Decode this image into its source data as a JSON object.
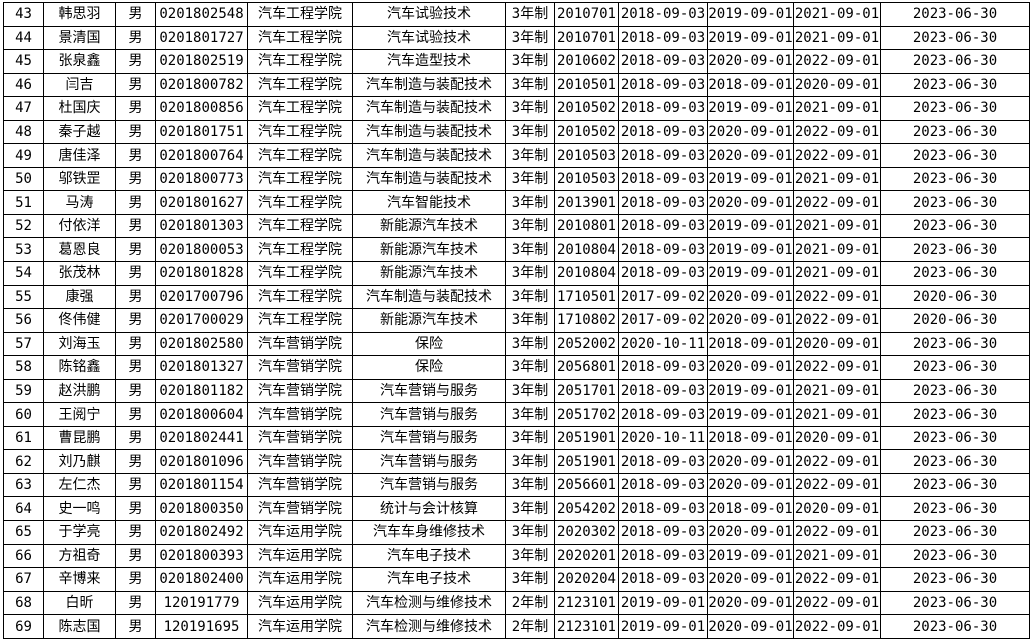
{
  "page": {
    "background_color": "#ffffff",
    "border_color": "#000000",
    "text_color": "#000000"
  },
  "table": {
    "columns": [
      {
        "id": "row-number"
      },
      {
        "id": "student-name"
      },
      {
        "id": "gender"
      },
      {
        "id": "student-id"
      },
      {
        "id": "college"
      },
      {
        "id": "major"
      },
      {
        "id": "program-duration"
      },
      {
        "id": "class-code"
      },
      {
        "id": "date-1"
      },
      {
        "id": "date-2"
      },
      {
        "id": "date-3"
      },
      {
        "id": "date-4"
      }
    ],
    "rows": [
      [
        "43",
        "韩思羽",
        "男",
        "0201802548",
        "汽车工程学院",
        "汽车试验技术",
        "3年制",
        "2010701",
        "2018-09-03",
        "2019-09-01",
        "2021-09-01",
        "2023-06-30"
      ],
      [
        "44",
        "景清国",
        "男",
        "0201801727",
        "汽车工程学院",
        "汽车试验技术",
        "3年制",
        "2010701",
        "2018-09-03",
        "2019-09-01",
        "2021-09-01",
        "2023-06-30"
      ],
      [
        "45",
        "张泉鑫",
        "男",
        "0201802519",
        "汽车工程学院",
        "汽车造型技术",
        "3年制",
        "2010602",
        "2018-09-03",
        "2020-09-01",
        "2022-09-01",
        "2023-06-30"
      ],
      [
        "46",
        "闫吉",
        "男",
        "0201800782",
        "汽车工程学院",
        "汽车制造与装配技术",
        "3年制",
        "2010501",
        "2018-09-03",
        "2018-09-01",
        "2020-09-01",
        "2023-06-30"
      ],
      [
        "47",
        "杜国庆",
        "男",
        "0201800856",
        "汽车工程学院",
        "汽车制造与装配技术",
        "3年制",
        "2010502",
        "2018-09-03",
        "2019-09-01",
        "2021-09-01",
        "2023-06-30"
      ],
      [
        "48",
        "秦子越",
        "男",
        "0201801751",
        "汽车工程学院",
        "汽车制造与装配技术",
        "3年制",
        "2010502",
        "2018-09-03",
        "2020-09-01",
        "2022-09-01",
        "2023-06-30"
      ],
      [
        "49",
        "唐佳泽",
        "男",
        "0201800764",
        "汽车工程学院",
        "汽车制造与装配技术",
        "3年制",
        "2010503",
        "2018-09-03",
        "2020-09-01",
        "2022-09-01",
        "2023-06-30"
      ],
      [
        "50",
        "邬铁罡",
        "男",
        "0201800773",
        "汽车工程学院",
        "汽车制造与装配技术",
        "3年制",
        "2010503",
        "2018-09-03",
        "2019-09-01",
        "2021-09-01",
        "2023-06-30"
      ],
      [
        "51",
        "马涛",
        "男",
        "0201801627",
        "汽车工程学院",
        "汽车智能技术",
        "3年制",
        "2013901",
        "2018-09-03",
        "2020-09-01",
        "2022-09-01",
        "2023-06-30"
      ],
      [
        "52",
        "付依洋",
        "男",
        "0201801303",
        "汽车工程学院",
        "新能源汽车技术",
        "3年制",
        "2010801",
        "2018-09-03",
        "2019-09-01",
        "2021-09-01",
        "2023-06-30"
      ],
      [
        "53",
        "葛恩良",
        "男",
        "0201800053",
        "汽车工程学院",
        "新能源汽车技术",
        "3年制",
        "2010804",
        "2018-09-03",
        "2019-09-01",
        "2021-09-01",
        "2023-06-30"
      ],
      [
        "54",
        "张茂林",
        "男",
        "0201801828",
        "汽车工程学院",
        "新能源汽车技术",
        "3年制",
        "2010804",
        "2018-09-03",
        "2019-09-01",
        "2021-09-01",
        "2023-06-30"
      ],
      [
        "55",
        "康强",
        "男",
        "0201700796",
        "汽车工程学院",
        "汽车制造与装配技术",
        "3年制",
        "1710501",
        "2017-09-02",
        "2020-09-01",
        "2022-09-01",
        "2020-06-30"
      ],
      [
        "56",
        "佟伟健",
        "男",
        "0201700029",
        "汽车工程学院",
        "新能源汽车技术",
        "3年制",
        "1710802",
        "2017-09-02",
        "2020-09-01",
        "2022-09-01",
        "2020-06-30"
      ],
      [
        "57",
        "刘海玉",
        "男",
        "0201802580",
        "汽车营销学院",
        "保险",
        "3年制",
        "2052002",
        "2020-10-11",
        "2018-09-01",
        "2020-09-01",
        "2023-06-30"
      ],
      [
        "58",
        "陈铭鑫",
        "男",
        "0201801327",
        "汽车营销学院",
        "保险",
        "3年制",
        "2056801",
        "2018-09-03",
        "2020-09-01",
        "2022-09-01",
        "2023-06-30"
      ],
      [
        "59",
        "赵洪鹏",
        "男",
        "0201801182",
        "汽车营销学院",
        "汽车营销与服务",
        "3年制",
        "2051701",
        "2018-09-03",
        "2019-09-01",
        "2021-09-01",
        "2023-06-30"
      ],
      [
        "60",
        "王阅宁",
        "男",
        "0201800604",
        "汽车营销学院",
        "汽车营销与服务",
        "3年制",
        "2051702",
        "2018-09-03",
        "2019-09-01",
        "2021-09-01",
        "2023-06-30"
      ],
      [
        "61",
        "曹昆鹏",
        "男",
        "0201802441",
        "汽车营销学院",
        "汽车营销与服务",
        "3年制",
        "2051901",
        "2020-10-11",
        "2018-09-01",
        "2020-09-01",
        "2023-06-30"
      ],
      [
        "62",
        "刘乃麒",
        "男",
        "0201801096",
        "汽车营销学院",
        "汽车营销与服务",
        "3年制",
        "2051901",
        "2018-09-03",
        "2020-09-01",
        "2022-09-01",
        "2023-06-30"
      ],
      [
        "63",
        "左仁杰",
        "男",
        "0201801154",
        "汽车营销学院",
        "汽车营销与服务",
        "3年制",
        "2056601",
        "2018-09-03",
        "2020-09-01",
        "2022-09-01",
        "2023-06-30"
      ],
      [
        "64",
        "史一鸣",
        "男",
        "0201800350",
        "汽车营销学院",
        "统计与会计核算",
        "3年制",
        "2054202",
        "2018-09-03",
        "2018-09-01",
        "2020-09-01",
        "2023-06-30"
      ],
      [
        "65",
        "于学亮",
        "男",
        "0201802492",
        "汽车运用学院",
        "汽车车身维修技术",
        "3年制",
        "2020302",
        "2018-09-03",
        "2020-09-01",
        "2022-09-01",
        "2023-06-30"
      ],
      [
        "66",
        "方祖奇",
        "男",
        "0201800393",
        "汽车运用学院",
        "汽车电子技术",
        "3年制",
        "2020201",
        "2018-09-03",
        "2019-09-01",
        "2021-09-01",
        "2023-06-30"
      ],
      [
        "67",
        "辛博来",
        "男",
        "0201802400",
        "汽车运用学院",
        "汽车电子技术",
        "3年制",
        "2020204",
        "2018-09-03",
        "2020-09-01",
        "2022-09-01",
        "2023-06-30"
      ],
      [
        "68",
        "白昕",
        "男",
        "120191779",
        "汽车运用学院",
        "汽车检测与维修技术",
        "2年制",
        "2123101",
        "2019-09-01",
        "2020-09-01",
        "2022-09-01",
        "2023-06-30"
      ],
      [
        "69",
        "陈志国",
        "男",
        "120191695",
        "汽车运用学院",
        "汽车检测与维修技术",
        "2年制",
        "2123101",
        "2019-09-01",
        "2020-09-01",
        "2022-09-01",
        "2023-06-30"
      ]
    ]
  }
}
